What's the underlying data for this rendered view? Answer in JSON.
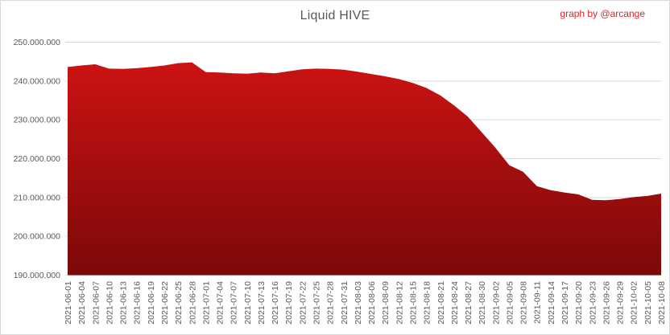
{
  "title": "Liquid HIVE",
  "credit": "graph by @arcange",
  "colors": {
    "area_top": "#cc1313",
    "area_bottom": "#7b0909",
    "gridline": "#d9d9d9",
    "axis_text": "#595959",
    "title_text": "#595959",
    "credit_text": "#d92525",
    "background": "#ffffff"
  },
  "chart_data": {
    "type": "area",
    "title": "Liquid HIVE",
    "xlabel": "",
    "ylabel": "",
    "grid": "horizontal",
    "legend": "none",
    "ylim": [
      190000000,
      250000000
    ],
    "yticks": [
      {
        "value": 250000000,
        "label": "250.000.000"
      },
      {
        "value": 240000000,
        "label": "240.000.000"
      },
      {
        "value": 230000000,
        "label": "230.000.000"
      },
      {
        "value": 220000000,
        "label": "220.000.000"
      },
      {
        "value": 210000000,
        "label": "210.000.000"
      },
      {
        "value": 200000000,
        "label": "200.000.000"
      },
      {
        "value": 190000000,
        "label": "190.000.000"
      }
    ],
    "x": [
      "2021-06-01",
      "2021-06-04",
      "2021-06-07",
      "2021-06-10",
      "2021-06-13",
      "2021-06-16",
      "2021-06-19",
      "2021-06-22",
      "2021-06-25",
      "2021-06-28",
      "2021-07-01",
      "2021-07-04",
      "2021-07-07",
      "2021-07-10",
      "2021-07-13",
      "2021-07-16",
      "2021-07-19",
      "2021-07-22",
      "2021-07-25",
      "2021-07-28",
      "2021-07-31",
      "2021-08-03",
      "2021-08-06",
      "2021-08-09",
      "2021-08-12",
      "2021-08-15",
      "2021-08-18",
      "2021-08-21",
      "2021-08-24",
      "2021-08-27",
      "2021-08-30",
      "2021-09-02",
      "2021-09-05",
      "2021-09-08",
      "2021-09-11",
      "2021-09-14",
      "2021-09-17",
      "2021-09-20",
      "2021-09-23",
      "2021-09-26",
      "2021-09-29",
      "2021-10-02",
      "2021-10-05",
      "2021-10-08"
    ],
    "values": [
      243600000,
      244000000,
      244300000,
      243200000,
      243100000,
      243300000,
      243600000,
      244000000,
      244600000,
      244800000,
      242300000,
      242200000,
      242000000,
      241900000,
      242200000,
      242000000,
      242500000,
      243000000,
      243200000,
      243100000,
      242900000,
      242400000,
      241800000,
      241200000,
      240500000,
      239500000,
      238200000,
      236300000,
      233700000,
      230800000,
      226800000,
      222800000,
      218300000,
      216600000,
      212900000,
      211900000,
      211300000,
      210800000,
      209400000,
      209300000,
      209600000,
      210100000,
      210400000,
      211000000
    ]
  }
}
